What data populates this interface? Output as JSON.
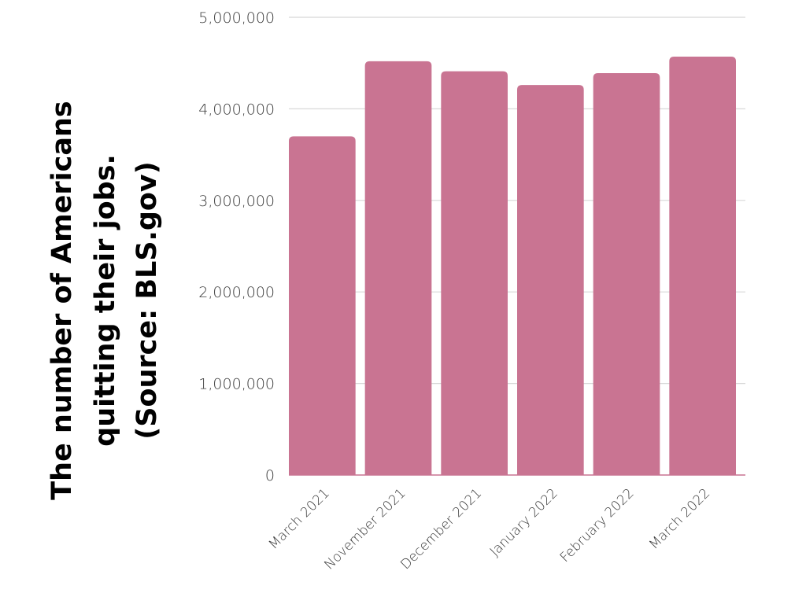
{
  "chart_data": {
    "type": "bar",
    "categories": [
      "March 2021",
      "November 2021",
      "December 2021",
      "January 2022",
      "February 2022",
      "March 2022"
    ],
    "values": [
      3700000,
      4520000,
      4410000,
      4260000,
      4390000,
      4570000
    ],
    "title": "",
    "xlabel": "",
    "ylabel_lines": [
      "The number of Americans",
      "quitting their jobs.",
      "(Source: BLS.gov)"
    ],
    "ylim": [
      0,
      5000000
    ],
    "yticks": [
      0,
      1000000,
      2000000,
      3000000,
      4000000,
      5000000
    ],
    "ytick_labels": [
      "0",
      "1,000,000",
      "2,000,000",
      "3,000,000",
      "4,000,000",
      "5,000,000"
    ],
    "grid": true,
    "legend": "none",
    "bar_color": "#c97492"
  }
}
